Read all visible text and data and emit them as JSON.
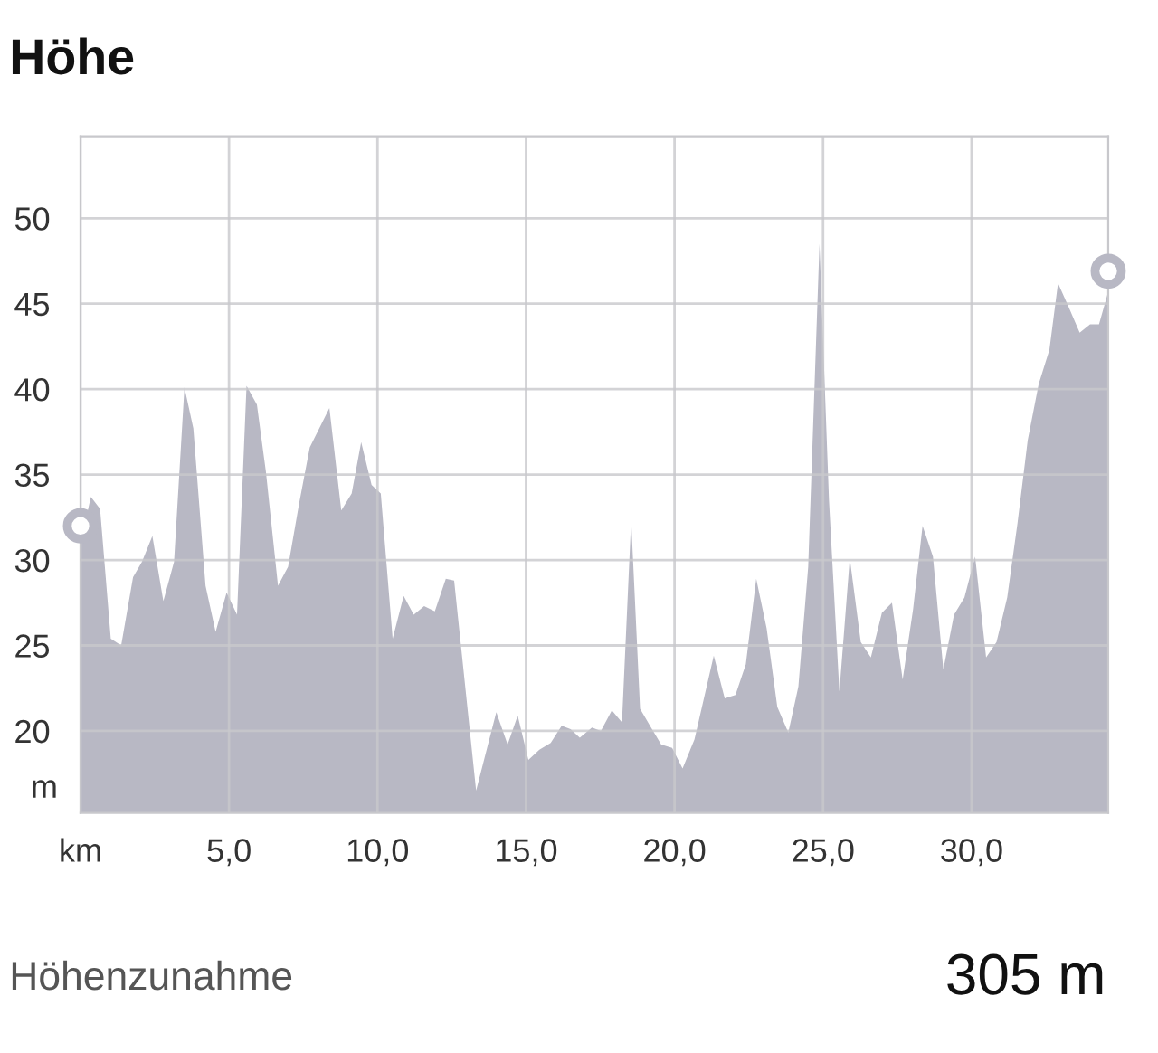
{
  "chart_data": {
    "type": "area",
    "title": "Höhe",
    "ylabel": "m",
    "xlim": [
      0,
      34.6
    ],
    "ylim": [
      15.2,
      54.8
    ],
    "xticks": [
      {
        "value": 0,
        "label": "km"
      },
      {
        "value": 5,
        "label": "5,0"
      },
      {
        "value": 10,
        "label": "10,0"
      },
      {
        "value": 15,
        "label": "15,0"
      },
      {
        "value": 20,
        "label": "20,0"
      },
      {
        "value": 25,
        "label": "25,0"
      },
      {
        "value": 30,
        "label": "30,0"
      }
    ],
    "yticks": [
      20,
      25,
      30,
      35,
      40,
      45,
      50
    ],
    "grid": true,
    "series": [
      {
        "color": "#b8b8c4",
        "x": [
          0,
          0.35,
          0.66,
          1.02,
          1.37,
          1.77,
          2.07,
          2.42,
          2.79,
          3.15,
          3.5,
          3.8,
          4.21,
          4.55,
          4.92,
          5.27,
          5.59,
          5.94,
          6.24,
          6.65,
          6.99,
          7.36,
          7.72,
          8.38,
          8.78,
          9.13,
          9.45,
          9.8,
          10.11,
          10.51,
          10.88,
          11.22,
          11.57,
          11.93,
          12.3,
          12.58,
          13.32,
          14.0,
          14.38,
          14.72,
          15.08,
          15.45,
          15.83,
          16.2,
          16.5,
          16.81,
          17.22,
          17.52,
          17.89,
          18.23,
          18.54,
          18.84,
          19.21,
          19.55,
          19.92,
          20.27,
          20.67,
          21.32,
          21.69,
          22.05,
          22.4,
          22.75,
          23.1,
          23.46,
          23.83,
          24.17,
          24.5,
          24.88,
          25.2,
          25.55,
          25.9,
          26.27,
          26.61,
          26.98,
          27.32,
          27.68,
          28.03,
          28.35,
          28.7,
          29.05,
          29.41,
          29.76,
          30.12,
          30.49,
          30.84,
          31.2,
          31.55,
          31.89,
          32.26,
          32.62,
          32.91,
          33.27,
          33.64,
          33.99,
          34.29,
          34.6
        ],
        "values": [
          31.0,
          33.7,
          33.0,
          25.4,
          25.0,
          29.0,
          29.9,
          31.4,
          27.6,
          29.9,
          40.1,
          37.7,
          28.5,
          25.8,
          28.1,
          26.8,
          40.2,
          39.1,
          35.2,
          28.5,
          29.6,
          33.3,
          36.6,
          38.9,
          32.9,
          33.9,
          36.9,
          34.4,
          33.9,
          25.4,
          27.9,
          26.8,
          27.3,
          27.0,
          28.9,
          28.8,
          16.5,
          21.1,
          19.2,
          20.9,
          18.3,
          18.9,
          19.3,
          20.3,
          20.1,
          19.6,
          20.2,
          20.0,
          21.2,
          20.5,
          32.3,
          21.3,
          20.2,
          19.2,
          19.0,
          17.8,
          19.5,
          24.4,
          21.9,
          22.1,
          23.9,
          28.9,
          26.0,
          21.4,
          19.9,
          22.6,
          29.6,
          48.5,
          33.5,
          22.3,
          30.1,
          25.2,
          24.3,
          26.9,
          27.5,
          23.0,
          27.1,
          32.0,
          30.2,
          23.6,
          26.8,
          27.8,
          30.2,
          24.3,
          25.2,
          27.8,
          32.2,
          37.0,
          40.3,
          42.3,
          46.2,
          44.8,
          43.3,
          43.8,
          43.8,
          45.7
        ]
      },
      {
        "type": "scatter",
        "color": "#b8b8c4",
        "marker": "circle",
        "x": [
          0,
          34.6
        ],
        "values": [
          32.0,
          46.9
        ]
      }
    ],
    "annotations": [
      "Höhenzunahme",
      "305 m"
    ]
  }
}
